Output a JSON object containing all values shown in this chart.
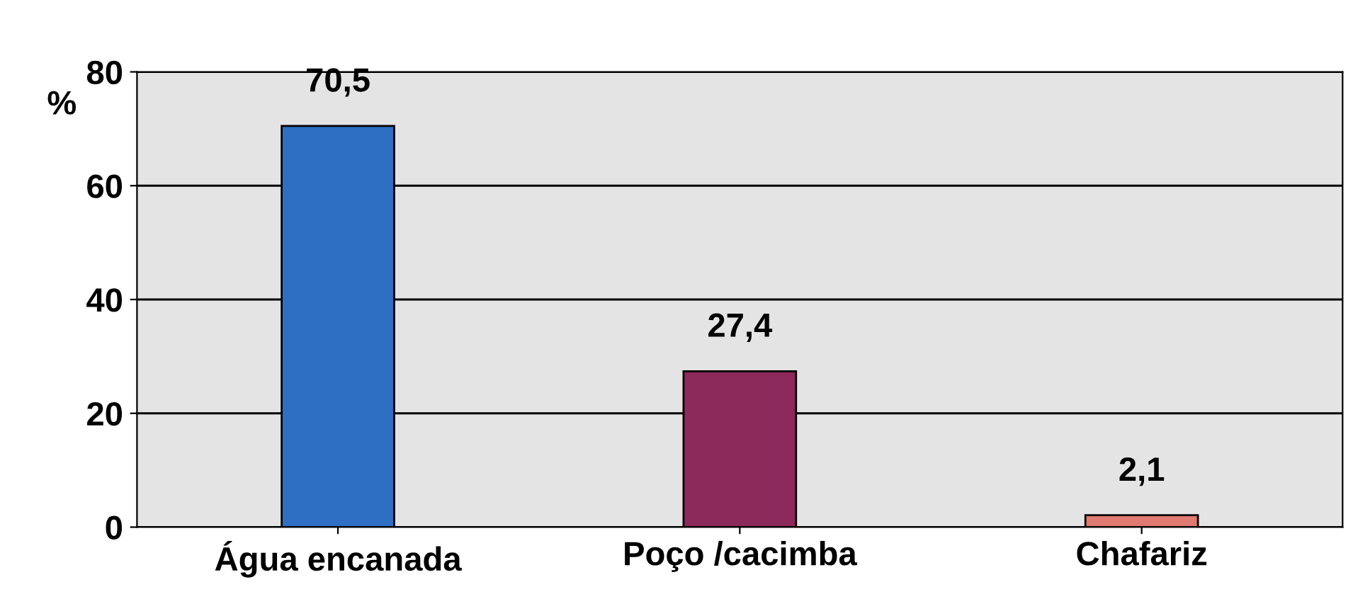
{
  "chart_data": {
    "type": "bar",
    "ylabel": "%",
    "categories": [
      "Água encanada",
      "Poço /cacimba",
      "Chafariz"
    ],
    "values": [
      70.5,
      27.4,
      2.1
    ],
    "colors": [
      "#2e6fc4",
      "#8c2a5c",
      "#e07a70"
    ],
    "value_labels": [
      "70,5",
      "27,4",
      "2,1"
    ],
    "ylim": [
      0,
      80
    ],
    "yticks": [
      0,
      20,
      40,
      60,
      80
    ],
    "grid": "y",
    "legend": false
  }
}
